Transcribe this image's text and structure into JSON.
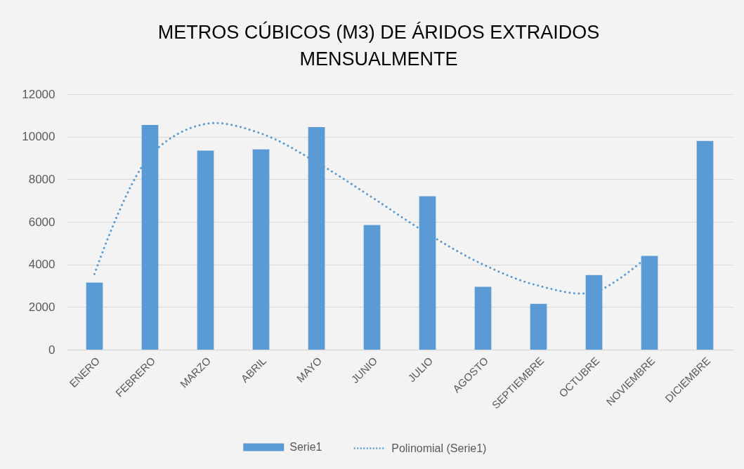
{
  "chart_data": {
    "type": "bar",
    "title": "METROS CÚBICOS (M3) DE ÁRIDOS EXTRAIDOS MENSUALMENTE",
    "categories": [
      "ENERO",
      "FEBRERO",
      "MARZO",
      "ABRIL",
      "MAYO",
      "JUNIO",
      "JULIO",
      "AGOSTO",
      "SEPTIEMBRE",
      "OCTUBRE",
      "NOVIEMBRE",
      "DICIEMBRE"
    ],
    "series": [
      {
        "name": "Serie1",
        "color": "#5b9bd5",
        "values": [
          3150,
          10550,
          9350,
          9400,
          10450,
          5850,
          7200,
          2950,
          2150,
          3500,
          4400,
          9800
        ]
      },
      {
        "name": "Polinomial (Serie1)",
        "type": "line",
        "line_style": "dotted",
        "color": "#5b9bd5",
        "values": [
          3550,
          9100,
          10600,
          10150,
          8800,
          7150,
          5450,
          4000,
          3000,
          2700,
          4450,
          null
        ]
      }
    ],
    "ylim": [
      0,
      12000
    ],
    "yticks": [
      0,
      2000,
      4000,
      6000,
      8000,
      10000,
      12000
    ],
    "grid": "y",
    "legend": "bottom"
  }
}
